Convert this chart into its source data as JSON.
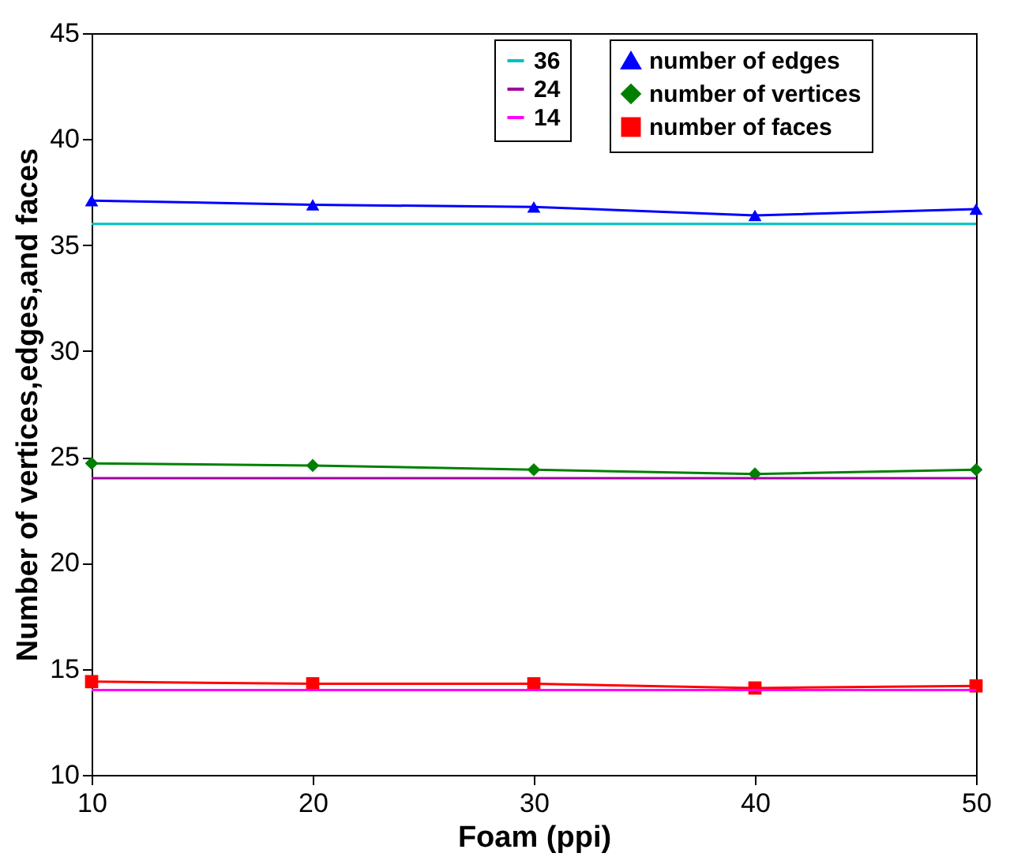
{
  "chart_data": {
    "type": "line",
    "xlabel": "Foam (ppi)",
    "ylabel": "Number of vertices,edges,and faces",
    "x": [
      10,
      20,
      30,
      40,
      50
    ],
    "series": [
      {
        "name": "36",
        "color": "#00c0c0",
        "marker": "none",
        "values": [
          36,
          36,
          36,
          36,
          36
        ]
      },
      {
        "name": "24",
        "color": "#a000a0",
        "marker": "none",
        "values": [
          24,
          24,
          24,
          24,
          24
        ]
      },
      {
        "name": "14",
        "color": "#ff00ff",
        "marker": "none",
        "values": [
          14,
          14,
          14,
          14,
          14
        ]
      },
      {
        "name": "number of edges",
        "color": "#0000ff",
        "marker": "triangle",
        "values": [
          37.1,
          36.9,
          36.8,
          36.4,
          36.7
        ]
      },
      {
        "name": "number of vertices",
        "color": "#008000",
        "marker": "diamond",
        "values": [
          24.7,
          24.6,
          24.4,
          24.2,
          24.4
        ]
      },
      {
        "name": "number of faces",
        "color": "#ff0000",
        "marker": "square",
        "values": [
          14.4,
          14.3,
          14.3,
          14.1,
          14.2
        ]
      }
    ],
    "xlim": [
      10,
      50
    ],
    "xticks": [
      10,
      20,
      30,
      40,
      50
    ],
    "ylim": [
      10,
      45
    ],
    "yticks": [
      10,
      15,
      20,
      25,
      30,
      35,
      40,
      45
    ],
    "grid": false,
    "legend": "top right",
    "line_style": "solid"
  }
}
